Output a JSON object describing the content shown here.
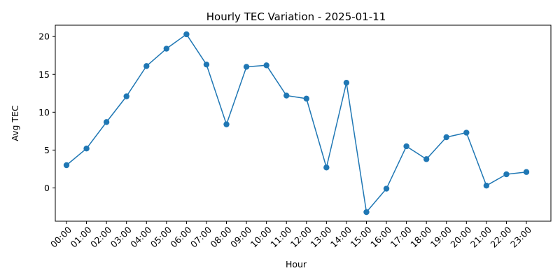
{
  "chart_data": {
    "type": "line",
    "title": "Hourly TEC Variation - 2025-01-11",
    "xlabel": "Hour",
    "ylabel": "Avg TEC",
    "categories": [
      "00:00",
      "01:00",
      "02:00",
      "03:00",
      "04:00",
      "05:00",
      "06:00",
      "07:00",
      "08:00",
      "09:00",
      "10:00",
      "11:00",
      "12:00",
      "13:00",
      "14:00",
      "15:00",
      "16:00",
      "17:00",
      "18:00",
      "19:00",
      "20:00",
      "21:00",
      "22:00",
      "23:00"
    ],
    "series": [
      {
        "values": [
          3.0,
          5.2,
          8.7,
          12.1,
          16.1,
          18.4,
          20.3,
          16.3,
          8.4,
          16.0,
          16.2,
          12.2,
          11.8,
          2.7,
          13.9,
          -3.2,
          -0.1,
          5.5,
          3.8,
          6.7,
          7.3,
          0.3,
          1.8,
          2.1
        ],
        "color": "#1f77b4"
      }
    ],
    "yticks": [
      0,
      5,
      10,
      15,
      20
    ],
    "ylim": [
      -4.4,
      21.5
    ],
    "grid": false,
    "legend": "none"
  }
}
